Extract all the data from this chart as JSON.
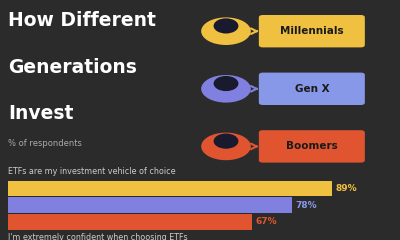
{
  "title_line1": "How Different",
  "title_line2": "Generations",
  "title_line3": "Invest",
  "subtitle": "% of respondents",
  "background_color": "#2b2b2b",
  "text_color": "#ffffff",
  "subtitle_color": "#aaaaaa",
  "section1_label": "ETFs are my investment vehicle of choice",
  "section2_label": "I'm extremely confident when choosing ETFs",
  "generations": [
    "Millennials",
    "Gen X",
    "Boomers"
  ],
  "gen_colors": [
    "#f0c040",
    "#8080e0",
    "#e05530"
  ],
  "gen_label_bg_colors": [
    "#f0c040",
    "#8898e8",
    "#e05530"
  ],
  "bar1_values": [
    89,
    78,
    67
  ],
  "bar1_labels": [
    "89%",
    "78%",
    "67%"
  ],
  "bar_label_colors": [
    "#f0c040",
    "#8898e8",
    "#e05530"
  ]
}
